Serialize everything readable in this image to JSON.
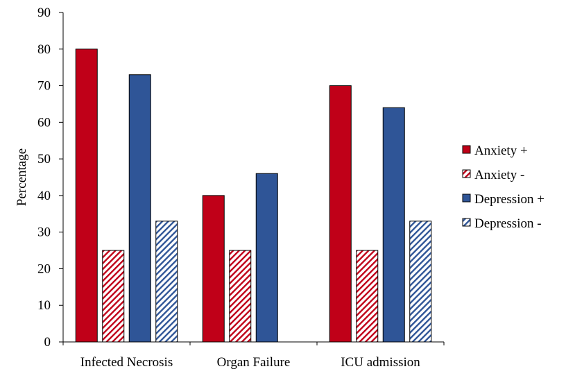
{
  "chart_data": {
    "type": "bar",
    "categories": [
      "Infected Necrosis",
      "Organ Failure",
      "ICU admission"
    ],
    "series": [
      {
        "name": "Anxiety +",
        "values": [
          80,
          40,
          70
        ],
        "color": "#C00018",
        "pattern": "solid"
      },
      {
        "name": "Anxiety -",
        "values": [
          25,
          25,
          25
        ],
        "color": "#C00018",
        "pattern": "hatch"
      },
      {
        "name": "Depression +",
        "values": [
          73,
          46,
          64
        ],
        "color": "#2F5597",
        "pattern": "solid"
      },
      {
        "name": "Depression -",
        "values": [
          33,
          null,
          33
        ],
        "color": "#2F5597",
        "pattern": "hatch"
      }
    ],
    "title": "",
    "xlabel": "",
    "ylabel": "Percentage",
    "ylim": [
      0,
      90
    ],
    "yticks": [
      0,
      10,
      20,
      30,
      40,
      50,
      60,
      70,
      80,
      90
    ],
    "grid": false,
    "legend_position": "right"
  }
}
